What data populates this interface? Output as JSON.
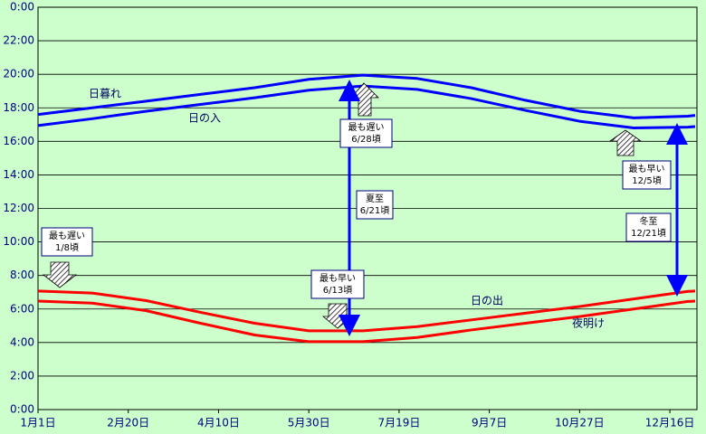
{
  "chart_data": {
    "type": "line",
    "x": [
      0,
      30,
      60,
      90,
      120,
      150,
      180,
      210,
      240,
      270,
      300,
      330,
      360,
      364
    ],
    "xlim": [
      0,
      365
    ],
    "xticks": [
      {
        "value": 0,
        "label": "1月1日"
      },
      {
        "value": 50,
        "label": "2月20日"
      },
      {
        "value": 100,
        "label": "4月10日"
      },
      {
        "value": 150,
        "label": "5月30日"
      },
      {
        "value": 200,
        "label": "7月19日"
      },
      {
        "value": 250,
        "label": "9月7日"
      },
      {
        "value": 300,
        "label": "10月27日"
      },
      {
        "value": 350,
        "label": "12月16日"
      }
    ],
    "ylim": [
      0,
      24
    ],
    "yticks": [
      {
        "value": 0,
        "label": "0:00"
      },
      {
        "value": 2,
        "label": "2:00"
      },
      {
        "value": 4,
        "label": "4:00"
      },
      {
        "value": 6,
        "label": "6:00"
      },
      {
        "value": 8,
        "label": "8:00"
      },
      {
        "value": 10,
        "label": "10:00"
      },
      {
        "value": 12,
        "label": "12:00"
      },
      {
        "value": 14,
        "label": "14:00"
      },
      {
        "value": 16,
        "label": "16:00"
      },
      {
        "value": 18,
        "label": "18:00"
      },
      {
        "value": 20,
        "label": "20:00"
      },
      {
        "value": 22,
        "label": "22:00"
      },
      {
        "value": 24,
        "label": "0:00"
      }
    ],
    "grid": true,
    "series": [
      {
        "name": "日暮れ",
        "color": "#0000ff",
        "values": [
          17.6,
          18.0,
          18.4,
          18.8,
          19.2,
          19.7,
          19.95,
          19.75,
          19.2,
          18.45,
          17.8,
          17.4,
          17.5,
          17.55
        ]
      },
      {
        "name": "日の入",
        "color": "#0000ff",
        "values": [
          16.94,
          17.35,
          17.8,
          18.2,
          18.6,
          19.05,
          19.3,
          19.1,
          18.55,
          17.85,
          17.2,
          16.8,
          16.85,
          16.88
        ]
      },
      {
        "name": "日の出",
        "color": "#ff0000",
        "values": [
          7.07,
          6.95,
          6.5,
          5.8,
          5.15,
          4.7,
          4.7,
          4.95,
          5.35,
          5.75,
          6.15,
          6.6,
          7.05,
          7.07
        ]
      },
      {
        "name": "夜明け",
        "color": "#ff0000",
        "values": [
          6.47,
          6.35,
          5.9,
          5.15,
          4.45,
          4.05,
          4.05,
          4.3,
          4.75,
          5.15,
          5.55,
          6.0,
          6.45,
          6.47
        ]
      }
    ],
    "annotations": [
      {
        "lines": [
          "最も遅い",
          "1/8頃"
        ]
      },
      {
        "lines": [
          "最も遅い",
          "6/28頃"
        ]
      },
      {
        "lines": [
          "夏至",
          "6/21頃"
        ]
      },
      {
        "lines": [
          "最も早い",
          "6/13頃"
        ]
      },
      {
        "lines": [
          "最も早い",
          "12/5頃"
        ]
      },
      {
        "lines": [
          "冬至",
          "12/21頃"
        ]
      }
    ]
  }
}
